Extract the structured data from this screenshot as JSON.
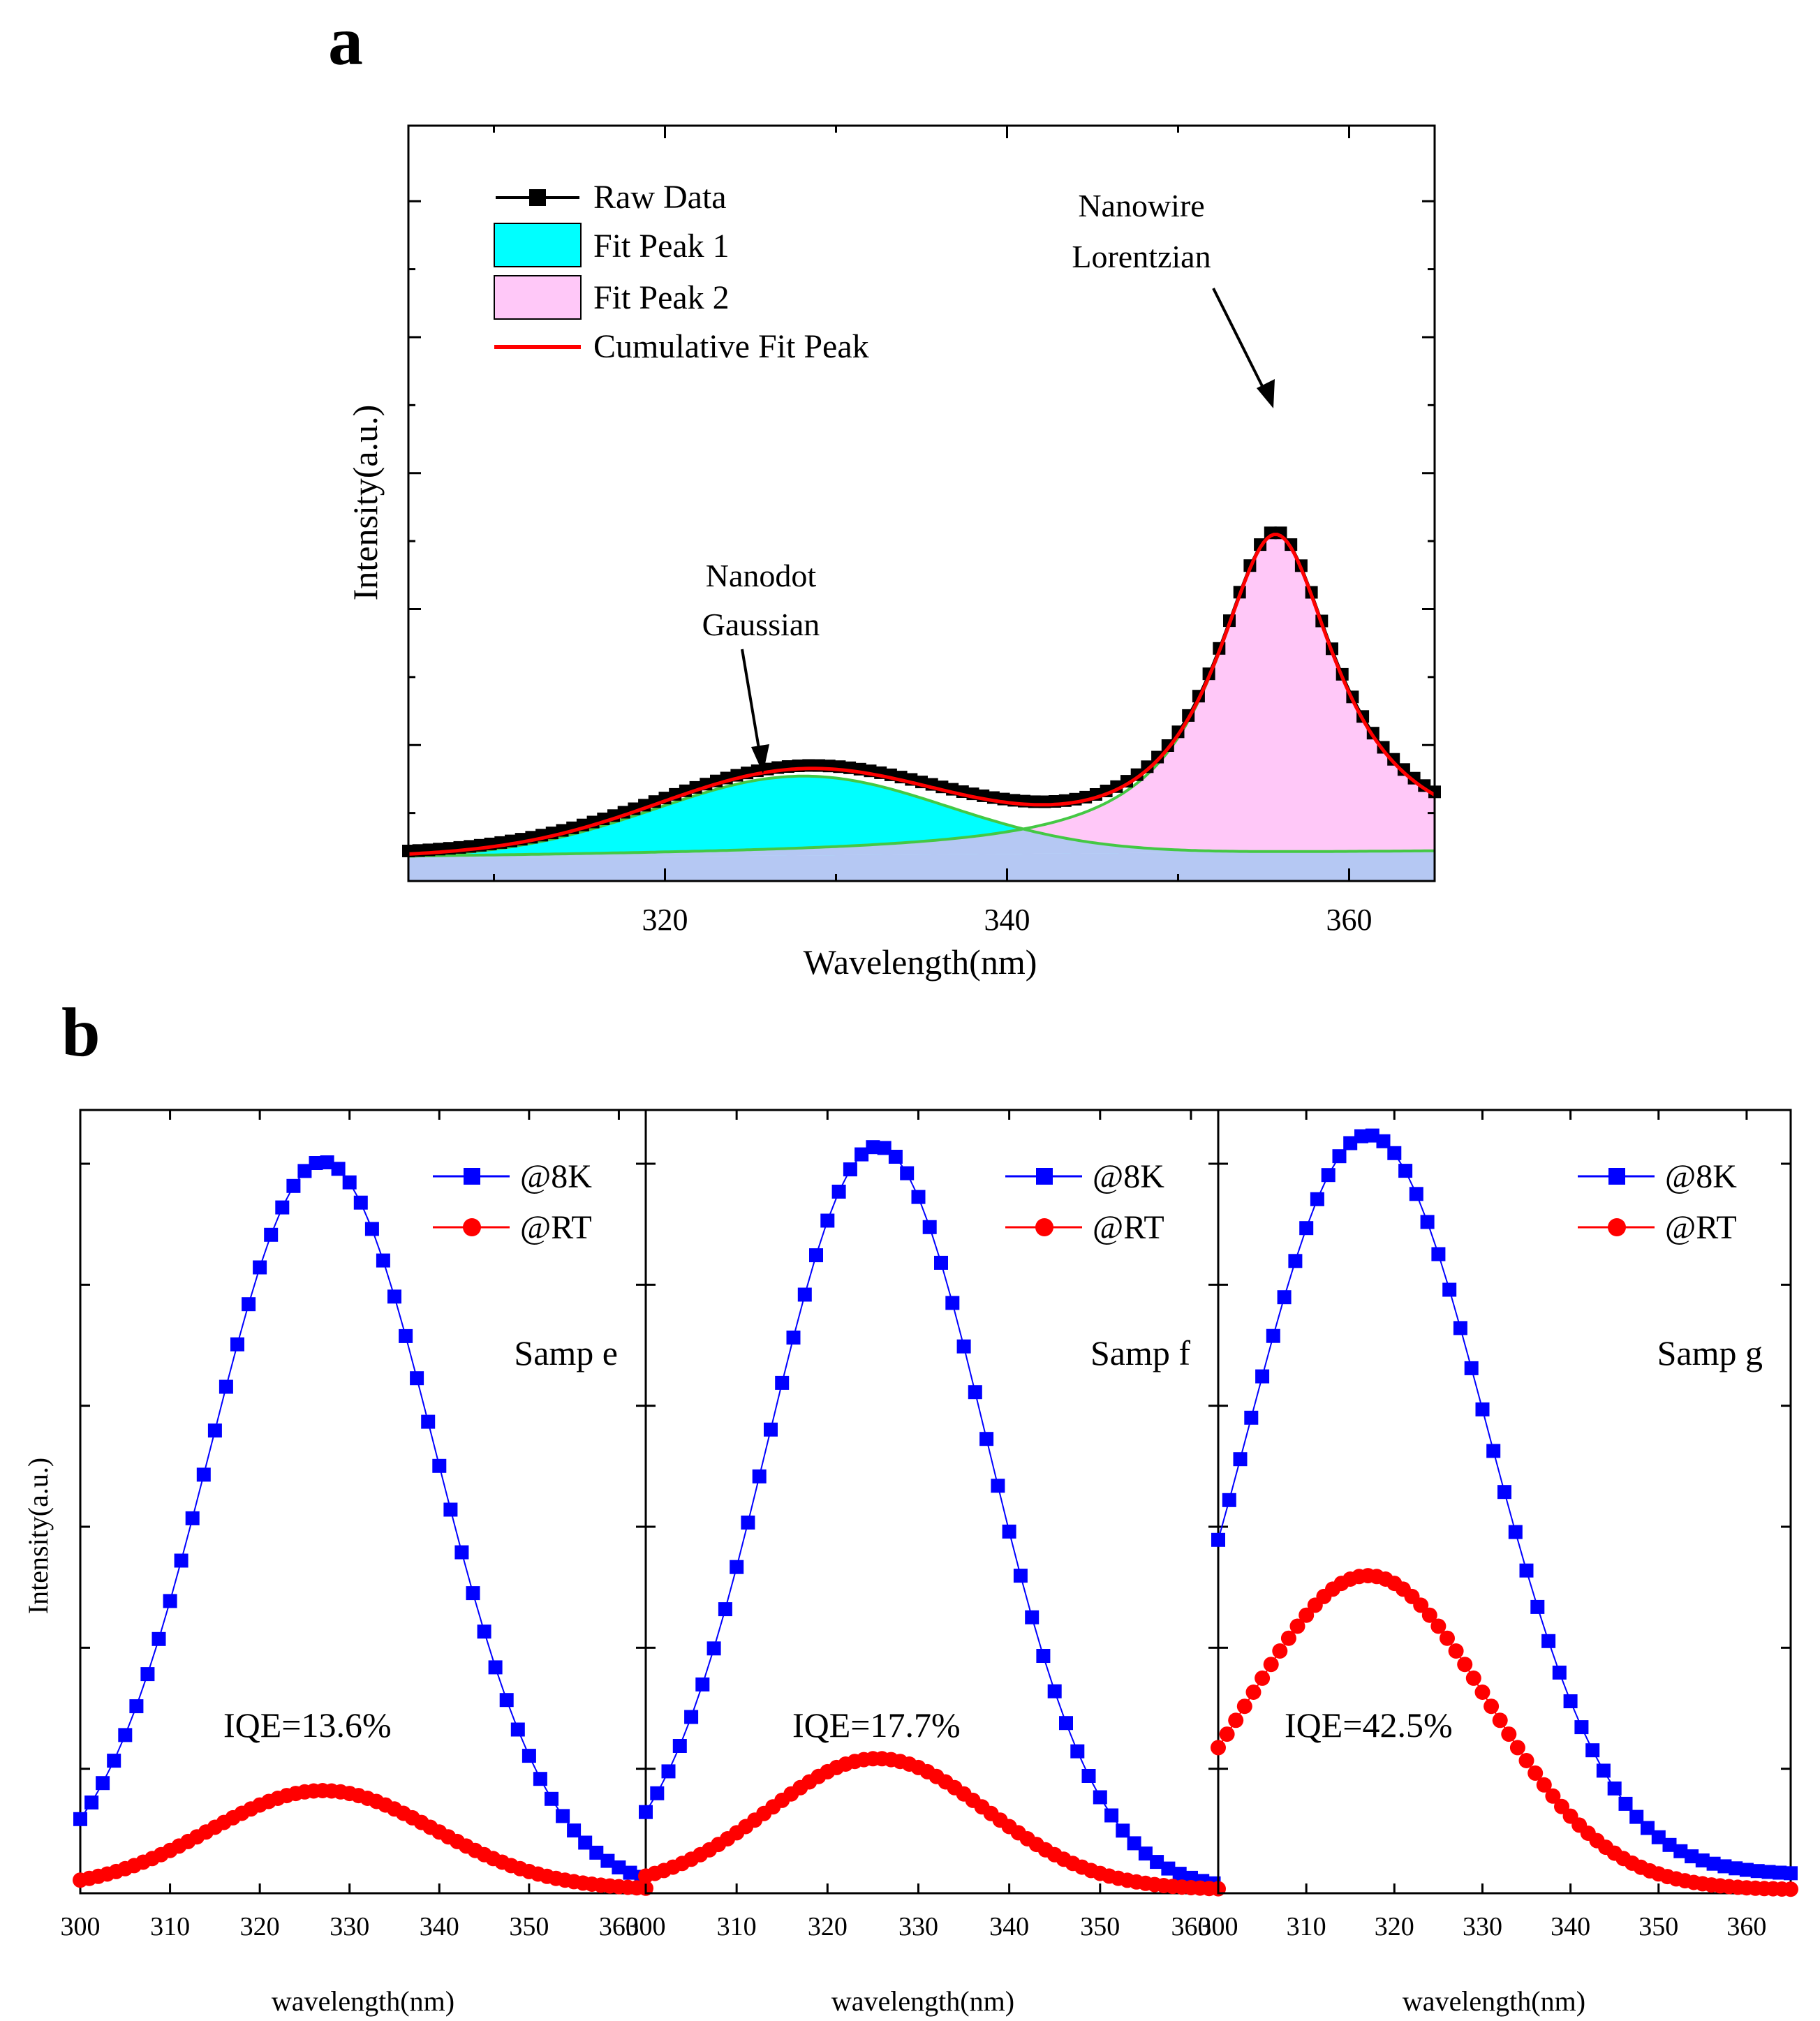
{
  "panel_labels": {
    "a": "a",
    "b": "b"
  },
  "colors": {
    "cyan": "#00ffff",
    "pink": "#ffc8f8",
    "baseline": "#b5c8f3",
    "red": "#ff0000",
    "green": "#44c844",
    "blue": "#0000ff",
    "black": "#000000"
  },
  "chart_data": [
    {
      "panel": "a",
      "type": "area",
      "xlabel": "Wavelength(nm)",
      "ylabel": "Intensity(a.u.)",
      "xlim": [
        305,
        365
      ],
      "ylim": [
        0,
        1.0
      ],
      "xticks": [
        320,
        340,
        360
      ],
      "yticks": [
        0.2,
        0.4,
        0.6,
        0.8,
        1.0
      ],
      "legend": {
        "position": "top-left",
        "entries": [
          "Raw Data",
          "Fit Peak 1",
          "Fit Peak 2",
          "Cumulative Fit Peak"
        ]
      },
      "annotations": [
        {
          "lines": [
            "Nanodot",
            "Gaussian"
          ],
          "at": [
            328,
            0.13
          ]
        },
        {
          "lines": [
            "Nanowire",
            "Lorentzian"
          ],
          "at": [
            355.5,
            0.57
          ]
        }
      ],
      "baseline": {
        "start": 0.03,
        "end": 0.04
      },
      "peaks": [
        {
          "name": "Fit Peak 1",
          "shape": "gaussian",
          "center": 328,
          "amplitude": 0.105,
          "sigma": 8.5
        },
        {
          "name": "Fit Peak 2",
          "shape": "lorentzian",
          "center": 355.7,
          "amplitude": 0.42,
          "hwhm": 4.3
        }
      ],
      "raw_data": {
        "x_start": 305,
        "x_step": 0.6,
        "count": 101,
        "offset": 0.004
      }
    },
    {
      "panel": "b",
      "type": "line",
      "xlabel": "wavelength(nm)",
      "ylabel": "Intensity(a.u.)",
      "xticks": [
        300,
        310,
        320,
        330,
        340,
        350,
        360
      ],
      "xtick_labels": [
        "300",
        "310",
        "320",
        "330",
        "340",
        "350",
        "360",
        "300",
        "310",
        "320",
        "330",
        "340",
        "350",
        "360",
        "300",
        "310",
        "320",
        "330",
        "340",
        "350",
        "360"
      ],
      "subplots": [
        {
          "sample": "Samp e",
          "iqe": "IQE=13.6%",
          "xlim": [
            300,
            363
          ],
          "ylim": [
            0,
            1.0
          ],
          "series": [
            {
              "name": "@8K",
              "marker": "square",
              "center": 327,
              "sigma": 12.5,
              "amplitude": 0.955,
              "baseline": 0.0
            },
            {
              "name": "@RT",
              "marker": "circle",
              "center": 327,
              "sigma": 12.5,
              "amplitude": 0.13,
              "baseline": 0.0
            }
          ]
        },
        {
          "sample": "Samp f",
          "iqe": "IQE=17.7%",
          "xlim": [
            300,
            363
          ],
          "ylim": [
            0,
            1.0
          ],
          "series": [
            {
              "name": "@8K",
              "marker": "square",
              "center": 325.5,
              "sigma": 12.0,
              "amplitude": 0.975,
              "baseline": 0.0
            },
            {
              "name": "@RT",
              "marker": "circle",
              "center": 325.5,
              "sigma": 12.0,
              "amplitude": 0.172,
              "baseline": 0.0
            }
          ]
        },
        {
          "sample": "Samp g",
          "iqe": "IQE=42.5%",
          "xlim": [
            300,
            365
          ],
          "ylim": [
            0,
            1.0
          ],
          "series": [
            {
              "name": "@8K",
              "marker": "square",
              "center": 317,
              "sigma": 13.5,
              "amplitude": 0.97,
              "baseline": 0.02
            },
            {
              "name": "@RT",
              "marker": "circle",
              "center": 317,
              "sigma": 13.5,
              "amplitude": 0.412,
              "baseline": 0.0
            }
          ]
        }
      ],
      "legend": {
        "position": "top-right",
        "entries": [
          "@8K",
          "@RT"
        ]
      }
    }
  ]
}
